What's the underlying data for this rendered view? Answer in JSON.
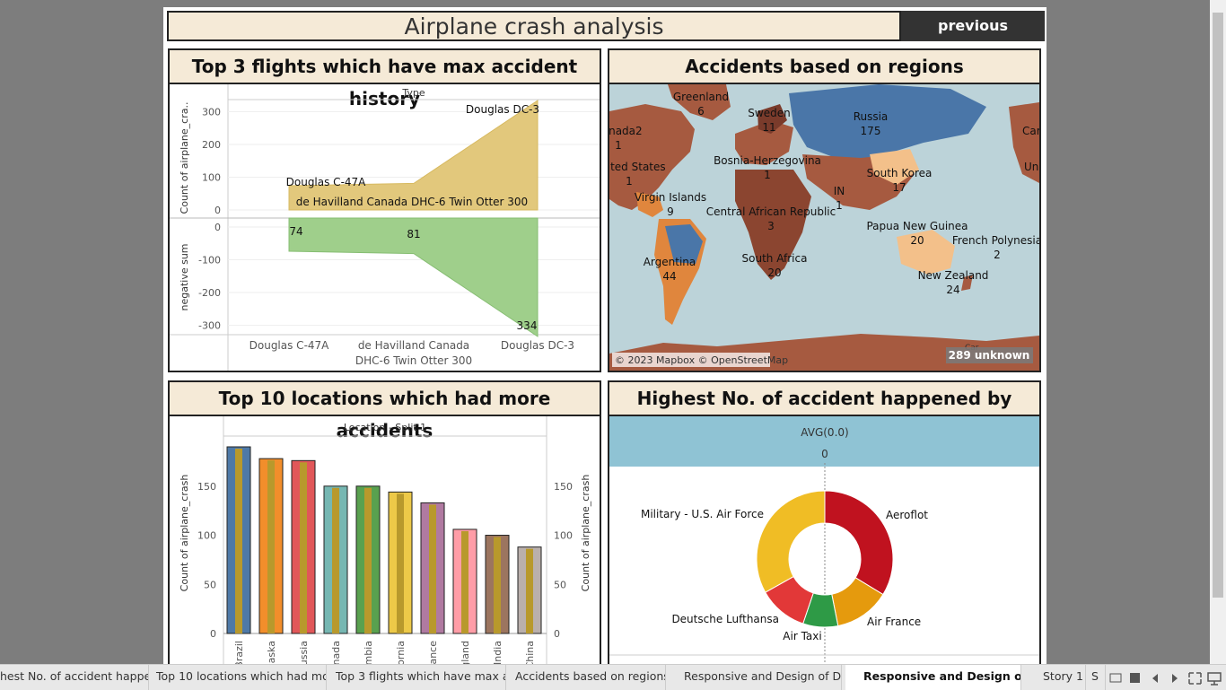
{
  "header": {
    "title": "Airplane crash analysis",
    "prev_label": "previous"
  },
  "panels": {
    "flights": {
      "title": "Top 3 flights which have max accident history"
    },
    "regions": {
      "title": "Accidents based on regions"
    },
    "locations": {
      "title": "Top 10 locations which had more accidents"
    },
    "operators": {
      "title": "Highest No. of accident happened by Operators"
    }
  },
  "colors": {
    "accent_bg": "#f5ead7",
    "area_top": "#e2c87c",
    "area_bottom": "#9fcf8b",
    "map_water": "#bcd3d9",
    "map_brown": "#a65a40",
    "map_blue": "#4a76a8"
  },
  "chart_data": [
    {
      "type": "area",
      "header": "Type",
      "categories": [
        "Douglas C-47A",
        "de Havilland Canada DHC-6 Twin Otter 300",
        "Douglas DC-3"
      ],
      "x_tick_labels": [
        "Douglas C-47A",
        "de Havilland Canada",
        "DHC-6 Twin Otter 300",
        "Douglas DC-3"
      ],
      "series": [
        {
          "name": "Count of airplane_cra..",
          "values": [
            74,
            81,
            334
          ]
        },
        {
          "name": "negative sum",
          "values": [
            -74,
            -81,
            -334
          ]
        }
      ],
      "ylabel_top": "Count of airplane_cra..",
      "ylabel_bottom": "negative sum",
      "top_ticks": [
        "300",
        "200",
        "100",
        "0"
      ],
      "bottom_ticks": [
        "0",
        "-100",
        "-200",
        "-300"
      ],
      "ylim_top": [
        0,
        334
      ],
      "ylim_bottom": [
        -334,
        0
      ],
      "annotations": [
        "Douglas DC-3",
        "Douglas C-47A",
        "de Havilland Canada DHC-6 Twin Otter 300",
        "74",
        "81",
        "334"
      ]
    },
    {
      "type": "bar",
      "header": "Location - Split 1",
      "categories": [
        "Brazil",
        "Alaska",
        "Russia",
        "Canada",
        "Colombia",
        "California",
        "France",
        "England",
        "India",
        "China"
      ],
      "category_labels": [
        "Brazil",
        "laska",
        "ussia",
        "anada",
        "mbia",
        "ornia",
        "rance",
        "gland",
        "India",
        "China"
      ],
      "values": [
        190,
        178,
        176,
        150,
        150,
        144,
        133,
        106,
        100,
        88
      ],
      "colors": [
        "#4e79a7",
        "#f28e2b",
        "#e15759",
        "#76b7b2",
        "#59a14f",
        "#edc948",
        "#b07aa1",
        "#ff9da7",
        "#9c755f",
        "#bab0ac"
      ],
      "inner_color": "#b8992c",
      "ylabel": "Count of airplane_crash",
      "yticks": [
        "150",
        "100",
        "50",
        "0"
      ],
      "ylim": [
        0,
        190
      ]
    },
    {
      "type": "pie",
      "header": "AVG(0.0)",
      "header_tick": "0",
      "slices": [
        {
          "label": "Aeroflot",
          "value": 179,
          "color": "#c0121f"
        },
        {
          "label": "Air France",
          "value": 70,
          "color": "#e59a0d"
        },
        {
          "label": "Air Taxi",
          "value": 44,
          "color": "#2e9a46"
        },
        {
          "label": "Deutsche Lufthansa",
          "value": 62,
          "color": "#e23838"
        },
        {
          "label": "Military - U.S. Air Force",
          "value": 176,
          "color": "#f0bd25"
        }
      ]
    }
  ],
  "map": {
    "labels": [
      {
        "name": "Greenland",
        "value": "6"
      },
      {
        "name": "Sweden",
        "value": "11"
      },
      {
        "name": "Russia",
        "value": "175"
      },
      {
        "name": "Canada2",
        "value": "1"
      },
      {
        "name": "United States",
        "value": "1"
      },
      {
        "name": "Bosnia-Herzegovina",
        "value": "1"
      },
      {
        "name": "South Korea",
        "value": "17"
      },
      {
        "name": "Virgin Islands",
        "value": "9"
      },
      {
        "name": "IN",
        "value": "1"
      },
      {
        "name": "Central African Republic",
        "value": "3"
      },
      {
        "name": "Papua New Guinea",
        "value": "20"
      },
      {
        "name": "French Polynesia",
        "value": "2"
      },
      {
        "name": "Argentina",
        "value": "44"
      },
      {
        "name": "South Africa",
        "value": "20"
      },
      {
        "name": "New Zealand",
        "value": "24"
      }
    ],
    "edge_labels": [
      "Car",
      "Un"
    ],
    "attribution": "© 2023 Mapbox © OpenStreetMap",
    "unknown": "289 unknown"
  },
  "tabs": [
    "hest No. of accident happen...",
    "Top 10 locations which had mor...",
    "Top 3 flights which have max ac...",
    "Accidents based on regions",
    "Responsive and Design of Da...",
    "Responsive and Design of D...",
    "Story 1",
    "S"
  ],
  "tab_icons": [
    "grid-icon",
    "square-icon",
    "prev-arrow-icon",
    "next-arrow-icon",
    "fullscreen-icon",
    "present-icon"
  ]
}
